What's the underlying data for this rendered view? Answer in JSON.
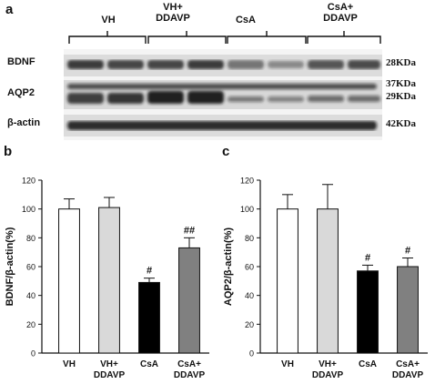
{
  "panel_a": {
    "letter": "a",
    "groups": [
      "VH",
      "VH+\nDDAVP",
      "CsA",
      "CsA+\nDDAVP"
    ],
    "rows": [
      {
        "label": "BDNF",
        "sizes": [
          "28KDa"
        ]
      },
      {
        "label": "AQP2",
        "sizes": [
          "37KDa",
          "29KDa"
        ]
      },
      {
        "label": "β-actin",
        "sizes": [
          "42KDa"
        ]
      }
    ]
  },
  "chart_data": [
    {
      "panel": "b",
      "type": "bar",
      "categories": [
        "VH",
        "VH+\nDDAVP",
        "CsA",
        "CsA+\nDDAVP"
      ],
      "values": [
        100,
        101,
        49,
        73
      ],
      "errors": [
        7,
        7,
        3,
        7
      ],
      "annotations": [
        "",
        "",
        "#",
        "##"
      ],
      "bar_colors": [
        "#ffffff",
        "#d9d9d9",
        "#000000",
        "#808080"
      ],
      "ylabel": "BDNF/β-actin(%)",
      "ylim": [
        0,
        120
      ],
      "yticks": [
        0,
        20,
        40,
        60,
        80,
        100,
        120
      ],
      "grid": false
    },
    {
      "panel": "c",
      "type": "bar",
      "categories": [
        "VH",
        "VH+\nDDAVP",
        "CsA",
        "CsA+\nDDAVP"
      ],
      "values": [
        100,
        100,
        57,
        60
      ],
      "errors": [
        10,
        17,
        4,
        6
      ],
      "annotations": [
        "",
        "",
        "#",
        "#"
      ],
      "bar_colors": [
        "#ffffff",
        "#d9d9d9",
        "#000000",
        "#808080"
      ],
      "ylabel": "AQP2/β-actin(%)",
      "ylim": [
        0,
        120
      ],
      "yticks": [
        0,
        20,
        40,
        60,
        80,
        100,
        120
      ],
      "grid": false
    }
  ]
}
